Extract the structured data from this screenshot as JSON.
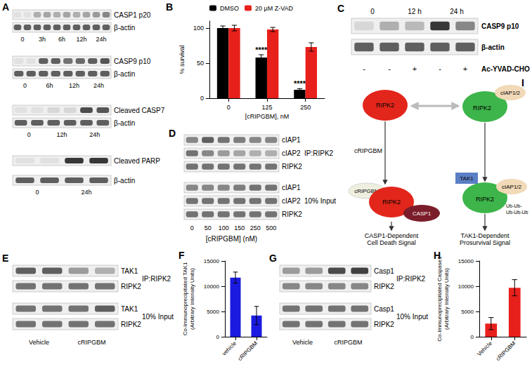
{
  "chart_data": [
    {
      "type": "bar",
      "categories": [
        "0",
        "125",
        "250"
      ],
      "series": [
        {
          "name": "DMSO",
          "color": "#000000",
          "values": [
            100,
            58,
            12
          ],
          "errors": [
            3,
            4,
            1.5
          ]
        },
        {
          "name": "20 µM Z-VAD",
          "color": "#e8201c",
          "values": [
            100,
            98,
            73
          ],
          "errors": [
            4,
            3,
            6
          ]
        }
      ],
      "x_label": "[cRIPGBM], nM",
      "y_label": "% survival",
      "ylim": [
        0,
        110
      ],
      "yticks": [
        0,
        50,
        100
      ],
      "grid": false,
      "legend": "top",
      "annotations": [
        {
          "category": "125",
          "series": "DMSO",
          "text": "****"
        },
        {
          "category": "250",
          "series": "DMSO",
          "text": "****"
        }
      ]
    },
    {
      "type": "bar",
      "categories": [
        "vehicle",
        "cRIPGBM"
      ],
      "values": [
        11700,
        4200
      ],
      "errors": [
        1100,
        1800
      ],
      "color": "#1a1ae0",
      "y_label": "Co-Immunoprecipitated TAK1\n(Arbitrary Intensity Units)",
      "ylim": [
        0,
        15000
      ],
      "yticks": [
        0,
        5000,
        10000,
        15000
      ],
      "grid": false
    },
    {
      "type": "bar",
      "categories": [
        "Vehicle",
        "cRIPGBM"
      ],
      "values": [
        2600,
        9700
      ],
      "errors": [
        1200,
        1600
      ],
      "color": "#e8201c",
      "y_label": "Co-Immunoprecipitated Caspase1\n(Arbitrary Intensity Units)",
      "ylim": [
        0,
        15000
      ],
      "yticks": [
        0,
        5000,
        10000,
        15000
      ],
      "grid": false
    }
  ],
  "panels": {
    "A": {
      "letter": "A",
      "blots": [
        {
          "rows": [
            {
              "label": "CASP1 p20",
              "bands": [
                0.05,
                0.05,
                0.3,
                0.35,
                0.3,
                0.35,
                0.3,
                0.35,
                0.4,
                0.5
              ]
            },
            {
              "label": "β-actin",
              "bands": [
                0.7,
                0.7,
                0.7,
                0.7,
                0.7,
                0.7,
                0.7,
                0.7,
                0.7,
                0.7
              ]
            }
          ],
          "lanes": [
            "0",
            "3h",
            "6h",
            "12h",
            "24h"
          ]
        },
        {
          "rows": [
            {
              "label": "CASP9 p10",
              "bands": [
                0.05,
                0.05,
                0.7,
                0.7,
                0.6,
                0.65,
                0.7,
                0.75
              ]
            },
            {
              "label": "β-actin",
              "bands": [
                0.7,
                0.7,
                0.7,
                0.7,
                0.7,
                0.7,
                0.7,
                0.7
              ]
            }
          ],
          "lanes": [
            "0",
            "6h",
            "12h",
            "24h"
          ]
        },
        {
          "rows": [
            {
              "label": "Cleaved CASP7",
              "bands": [
                0.05,
                0.05,
                0.1,
                0.1,
                0.8,
                0.75
              ]
            },
            {
              "label": "β-actin",
              "bands": [
                0.7,
                0.7,
                0.7,
                0.7,
                0.7,
                0.7
              ]
            }
          ],
          "lanes": [
            "0",
            "12h",
            "24h"
          ]
        },
        {
          "rows": [
            {
              "label": "Cleaved PARP",
              "bands": [
                0.05,
                0.05,
                0.9,
                0.9
              ]
            },
            {
              "label": "β-actin",
              "bands": [
                0.7,
                0.7,
                0.7,
                0.7
              ]
            }
          ],
          "lanes": [
            "0",
            "24h"
          ]
        }
      ]
    },
    "B": {
      "letter": "B"
    },
    "C": {
      "letter": "C",
      "header": [
        "0",
        "12 h",
        "24 h"
      ],
      "rows": [
        {
          "label": "CASP9 p10",
          "bands": [
            0.1,
            0.3,
            0.25,
            0.9,
            0.5
          ]
        },
        {
          "label": "β-actin",
          "bands": [
            0.7,
            0.7,
            0.7,
            0.7,
            0.7
          ]
        }
      ],
      "treatment": {
        "label": "Ac-YVAD-CHO",
        "signs": [
          "-",
          "-",
          "+",
          "-",
          "+"
        ]
      }
    },
    "D": {
      "letter": "D",
      "groups": [
        {
          "label": "IP:RIPK2",
          "rows": [
            {
              "label": "cIAP1",
              "bands": [
                0.5,
                0.7,
                0.6,
                0.55,
                0.5,
                0.5
              ]
            },
            {
              "label": "cIAP2",
              "bands": [
                0.6,
                0.5,
                0.4,
                0.35,
                0.3,
                0.3
              ]
            },
            {
              "label": "RIPK2",
              "bands": [
                0.6,
                0.6,
                0.6,
                0.6,
                0.6,
                0.6
              ]
            }
          ]
        },
        {
          "label": "10% Input",
          "rows": [
            {
              "label": "cIAP1",
              "bands": [
                0.5,
                0.5,
                0.5,
                0.55,
                0.6,
                0.6
              ]
            },
            {
              "label": "cIAP2",
              "bands": [
                0.6,
                0.6,
                0.6,
                0.6,
                0.6,
                0.6
              ]
            },
            {
              "label": "RIPK2",
              "bands": [
                0.6,
                0.6,
                0.6,
                0.6,
                0.6,
                0.6
              ]
            }
          ]
        }
      ],
      "lanes": [
        "0",
        "50",
        "100",
        "150",
        "250",
        "500"
      ],
      "x_label": "[cRIPGBM] (nM)"
    },
    "E": {
      "letter": "E",
      "groups": [
        {
          "label": "IP:RIPK2",
          "rows": [
            {
              "label": "TAK1",
              "bands": [
                0.7,
                0.7,
                0.4,
                0.3
              ]
            },
            {
              "label": "RIPK2",
              "bands": [
                0.6,
                0.6,
                0.6,
                0.6
              ]
            }
          ]
        },
        {
          "label": "10% Input",
          "rows": [
            {
              "label": "TAK1",
              "bands": [
                0.6,
                0.6,
                0.6,
                0.7
              ]
            },
            {
              "label": "RIPK2",
              "bands": [
                0.6,
                0.6,
                0.6,
                0.6
              ]
            }
          ]
        }
      ],
      "lanes": [
        "Vehicle",
        "cRIPGBM"
      ]
    },
    "F": {
      "letter": "F"
    },
    "G": {
      "letter": "G",
      "groups": [
        {
          "label": "IP:RIPK2",
          "rows": [
            {
              "label": "Casp1",
              "bands": [
                0.4,
                0.4,
                0.8,
                0.85
              ]
            },
            {
              "label": "RIPK2",
              "bands": [
                0.5,
                0.5,
                0.5,
                0.5
              ]
            }
          ]
        },
        {
          "label": "10% Input",
          "rows": [
            {
              "label": "Casp1",
              "bands": [
                0.6,
                0.6,
                0.6,
                0.6
              ]
            },
            {
              "label": "RIPK2",
              "bands": [
                0.6,
                0.6,
                0.6,
                0.6
              ]
            }
          ]
        }
      ],
      "lanes": [
        "Vehicle",
        "cRIPGBM"
      ]
    },
    "H": {
      "letter": "H"
    },
    "I": {
      "letter": "I",
      "left": {
        "top": "RIPK2",
        "arrow_label": "cRIPGBM",
        "bound": "RIPK2",
        "drug": "cRIPGBM",
        "partner": "CASP1",
        "outcome": "CASP1-Dependent\nCell Death Signal"
      },
      "right": {
        "top": "RIPK2",
        "top_partner": "cIAP1/2",
        "bound": "RIPK2",
        "kinase": "TAK1",
        "partner": "cIAP1/2",
        "ubiquitin": "Ub-Ub-\nUb-Ub-Ub",
        "outcome": "TAK1-Dependent\nProsurvival Signal"
      }
    }
  }
}
